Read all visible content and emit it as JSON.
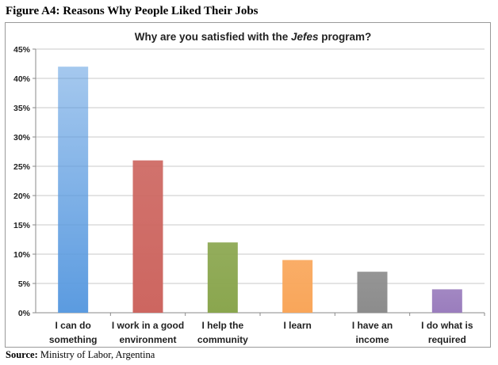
{
  "figure_title": "Figure A4: Reasons Why People Liked Their Jobs",
  "source": {
    "label": "Source:",
    "text": "Ministry of Labor, Argentina"
  },
  "chart_data": {
    "type": "bar",
    "title_parts": [
      "Why are you satisfied with the ",
      "Jefes",
      " program?"
    ],
    "categories": [
      [
        "I can do",
        "something"
      ],
      [
        "I work in a good",
        "environment"
      ],
      [
        "I help the",
        "community"
      ],
      [
        "I learn"
      ],
      [
        "I have an",
        "income"
      ],
      [
        "I do what is",
        "required"
      ]
    ],
    "values": [
      42,
      26,
      12,
      9,
      7,
      4
    ],
    "colors": [
      "#5b9be0",
      "#cd6660",
      "#8aa64e",
      "#f9a65a",
      "#8c8c8c",
      "#9a7dbd"
    ],
    "ylim": [
      0,
      45
    ],
    "yticks": [
      "0%",
      "5%",
      "10%",
      "15%",
      "20%",
      "25%",
      "30%",
      "35%",
      "40%",
      "45%"
    ],
    "grid": true,
    "legend": "none"
  }
}
